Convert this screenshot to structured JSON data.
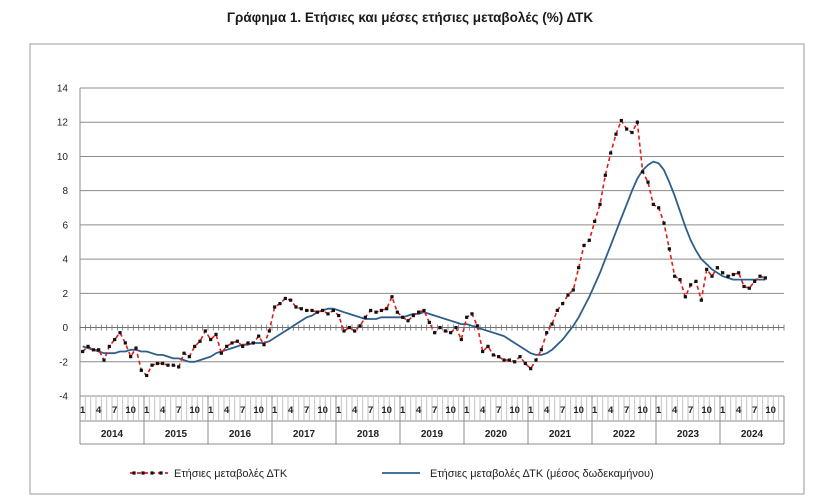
{
  "chart_data": {
    "type": "line",
    "title": "Γράφημα 1. Ετήσιες και μέσες ετήσιες μεταβολές (%) ΔΤΚ",
    "xlabel": "",
    "ylabel": "",
    "ylim": [
      -4,
      14
    ],
    "yticks": [
      -4,
      -2,
      0,
      2,
      4,
      6,
      8,
      10,
      12,
      14
    ],
    "grid": true,
    "legend_position": "bottom",
    "years": [
      "2014",
      "2015",
      "2016",
      "2017",
      "2018",
      "2019",
      "2020",
      "2021",
      "2022",
      "2023",
      "2024"
    ],
    "month_ticks": [
      "1",
      "4",
      "7",
      "10"
    ],
    "x": [
      "2014-01",
      "2014-02",
      "2014-03",
      "2014-04",
      "2014-05",
      "2014-06",
      "2014-07",
      "2014-08",
      "2014-09",
      "2014-10",
      "2014-11",
      "2014-12",
      "2015-01",
      "2015-02",
      "2015-03",
      "2015-04",
      "2015-05",
      "2015-06",
      "2015-07",
      "2015-08",
      "2015-09",
      "2015-10",
      "2015-11",
      "2015-12",
      "2016-01",
      "2016-02",
      "2016-03",
      "2016-04",
      "2016-05",
      "2016-06",
      "2016-07",
      "2016-08",
      "2016-09",
      "2016-10",
      "2016-11",
      "2016-12",
      "2017-01",
      "2017-02",
      "2017-03",
      "2017-04",
      "2017-05",
      "2017-06",
      "2017-07",
      "2017-08",
      "2017-09",
      "2017-10",
      "2017-11",
      "2017-12",
      "2018-01",
      "2018-02",
      "2018-03",
      "2018-04",
      "2018-05",
      "2018-06",
      "2018-07",
      "2018-08",
      "2018-09",
      "2018-10",
      "2018-11",
      "2018-12",
      "2019-01",
      "2019-02",
      "2019-03",
      "2019-04",
      "2019-05",
      "2019-06",
      "2019-07",
      "2019-08",
      "2019-09",
      "2019-10",
      "2019-11",
      "2019-12",
      "2020-01",
      "2020-02",
      "2020-03",
      "2020-04",
      "2020-05",
      "2020-06",
      "2020-07",
      "2020-08",
      "2020-09",
      "2020-10",
      "2020-11",
      "2020-12",
      "2021-01",
      "2021-02",
      "2021-03",
      "2021-04",
      "2021-05",
      "2021-06",
      "2021-07",
      "2021-08",
      "2021-09",
      "2021-10",
      "2021-11",
      "2021-12",
      "2022-01",
      "2022-02",
      "2022-03",
      "2022-04",
      "2022-05",
      "2022-06",
      "2022-07",
      "2022-08",
      "2022-09",
      "2022-10",
      "2022-11",
      "2022-12",
      "2023-01",
      "2023-02",
      "2023-03",
      "2023-04",
      "2023-05",
      "2023-06",
      "2023-07",
      "2023-08",
      "2023-09",
      "2023-10",
      "2023-11",
      "2023-12",
      "2024-01",
      "2024-02",
      "2024-03",
      "2024-04",
      "2024-05",
      "2024-06",
      "2024-07",
      "2024-08",
      "2024-09"
    ],
    "series": [
      {
        "name": "Ετήσιες μεταβολές ΔΤΚ",
        "color": "#e31b1b",
        "style": "dashed-with-markers",
        "values": [
          -1.4,
          -1.1,
          -1.3,
          -1.3,
          -1.9,
          -1.1,
          -0.7,
          -0.3,
          -0.9,
          -1.7,
          -1.2,
          -2.5,
          -2.8,
          -2.2,
          -2.1,
          -2.1,
          -2.2,
          -2.2,
          -2.3,
          -1.5,
          -1.7,
          -1.1,
          -0.8,
          -0.2,
          -0.7,
          -0.4,
          -1.5,
          -1.1,
          -0.9,
          -0.8,
          -1.1,
          -0.9,
          -0.9,
          -0.5,
          -1.0,
          -0.2,
          1.2,
          1.4,
          1.7,
          1.6,
          1.2,
          1.1,
          1.0,
          1.0,
          0.9,
          1.0,
          0.8,
          1.0,
          0.7,
          -0.2,
          0.0,
          -0.2,
          0.1,
          0.6,
          1.0,
          0.9,
          1.0,
          1.1,
          1.8,
          0.9,
          0.6,
          0.4,
          0.7,
          0.9,
          1.0,
          0.3,
          -0.3,
          0.0,
          -0.2,
          -0.3,
          0.0,
          -0.7,
          0.6,
          0.8,
          0.1,
          -1.4,
          -1.1,
          -1.6,
          -1.7,
          -1.9,
          -1.9,
          -2.0,
          -1.7,
          -2.1,
          -2.4,
          -1.9,
          -1.3,
          -0.3,
          0.2,
          1.0,
          1.4,
          1.9,
          2.2,
          3.5,
          4.8,
          5.1,
          6.2,
          7.2,
          8.9,
          10.2,
          11.3,
          12.1,
          11.6,
          11.4,
          12.0,
          9.1,
          8.5,
          7.2,
          7.0,
          6.1,
          4.6,
          3.0,
          2.8,
          1.8,
          2.5,
          2.7,
          1.6,
          3.4,
          3.0,
          3.5,
          3.2,
          3.0,
          3.1,
          3.2,
          2.4,
          2.3,
          2.7,
          3.0,
          2.9
        ]
      },
      {
        "name": "Ετήσιες μεταβολές ΔΤΚ (μέσος δωδεκαμήνου)",
        "color": "#2e5f8a",
        "style": "solid",
        "values": [
          -1.1,
          -1.2,
          -1.3,
          -1.4,
          -1.5,
          -1.5,
          -1.5,
          -1.4,
          -1.4,
          -1.3,
          -1.3,
          -1.4,
          -1.4,
          -1.5,
          -1.6,
          -1.6,
          -1.7,
          -1.8,
          -1.8,
          -1.9,
          -2.0,
          -2.0,
          -1.9,
          -1.8,
          -1.7,
          -1.5,
          -1.4,
          -1.3,
          -1.2,
          -1.1,
          -1.0,
          -1.0,
          -0.9,
          -0.9,
          -0.9,
          -0.8,
          -0.6,
          -0.4,
          -0.2,
          0.0,
          0.2,
          0.4,
          0.6,
          0.7,
          0.9,
          1.0,
          1.1,
          1.1,
          1.0,
          0.9,
          0.8,
          0.7,
          0.6,
          0.5,
          0.5,
          0.5,
          0.6,
          0.6,
          0.6,
          0.6,
          0.6,
          0.7,
          0.8,
          0.8,
          0.9,
          0.8,
          0.7,
          0.6,
          0.5,
          0.4,
          0.3,
          0.2,
          0.2,
          0.1,
          0.0,
          -0.1,
          -0.2,
          -0.3,
          -0.4,
          -0.5,
          -0.7,
          -0.9,
          -1.1,
          -1.3,
          -1.5,
          -1.6,
          -1.6,
          -1.5,
          -1.3,
          -1.0,
          -0.7,
          -0.3,
          0.1,
          0.6,
          1.2,
          1.8,
          2.5,
          3.2,
          4.0,
          4.8,
          5.6,
          6.4,
          7.2,
          8.0,
          8.7,
          9.2,
          9.5,
          9.7,
          9.6,
          9.2,
          8.5,
          7.7,
          6.8,
          5.9,
          5.1,
          4.5,
          4.0,
          3.7,
          3.4,
          3.2,
          3.0,
          2.9,
          2.8,
          2.8,
          2.8,
          2.8,
          2.8,
          2.8,
          2.8
        ]
      }
    ]
  }
}
